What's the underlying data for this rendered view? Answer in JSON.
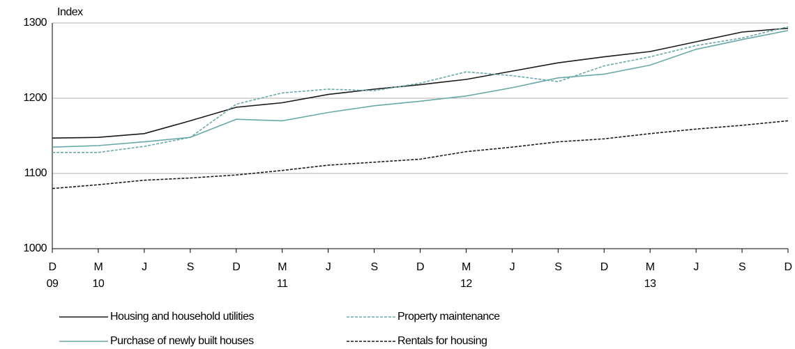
{
  "chart_data": {
    "type": "line",
    "y_label": "Index",
    "categories": [
      "D",
      "M",
      "J",
      "S",
      "D",
      "M",
      "J",
      "S",
      "D",
      "M",
      "J",
      "S",
      "D",
      "M",
      "J",
      "S",
      "D"
    ],
    "year_labels": [
      "09",
      "10",
      null,
      null,
      null,
      "11",
      null,
      null,
      null,
      "12",
      null,
      null,
      null,
      "13",
      null,
      null,
      null
    ],
    "ylim": [
      1000,
      1300
    ],
    "yticks": [
      1000,
      1100,
      1200,
      1300
    ],
    "grid": true,
    "series": [
      {
        "name": "Housing and household utilities",
        "color": "#1a1a1a",
        "dashed": false,
        "values": [
          1147,
          1148,
          1153,
          1170,
          1188,
          1194,
          1205,
          1212,
          1218,
          1225,
          1236,
          1247,
          1255,
          1262,
          1275,
          1288,
          1293
        ]
      },
      {
        "name": "Property maintenance",
        "color": "#6aa9a9",
        "dashed": true,
        "values": [
          1128,
          1128,
          1136,
          1148,
          1192,
          1207,
          1212,
          1210,
          1220,
          1235,
          1230,
          1222,
          1243,
          1255,
          1270,
          1280,
          1295
        ]
      },
      {
        "name": "Purchase of newly built houses",
        "color": "#6aa9a9",
        "dashed": false,
        "values": [
          1135,
          1137,
          1142,
          1148,
          1172,
          1170,
          1181,
          1190,
          1196,
          1203,
          1214,
          1227,
          1232,
          1244,
          1265,
          1278,
          1290
        ]
      },
      {
        "name": "Rentals for housing",
        "color": "#1a1a1a",
        "dashed": true,
        "values": [
          1080,
          1085,
          1091,
          1094,
          1098,
          1104,
          1111,
          1115,
          1119,
          1129,
          1135,
          1142,
          1146,
          1153,
          1159,
          1164,
          1170
        ]
      }
    ]
  }
}
